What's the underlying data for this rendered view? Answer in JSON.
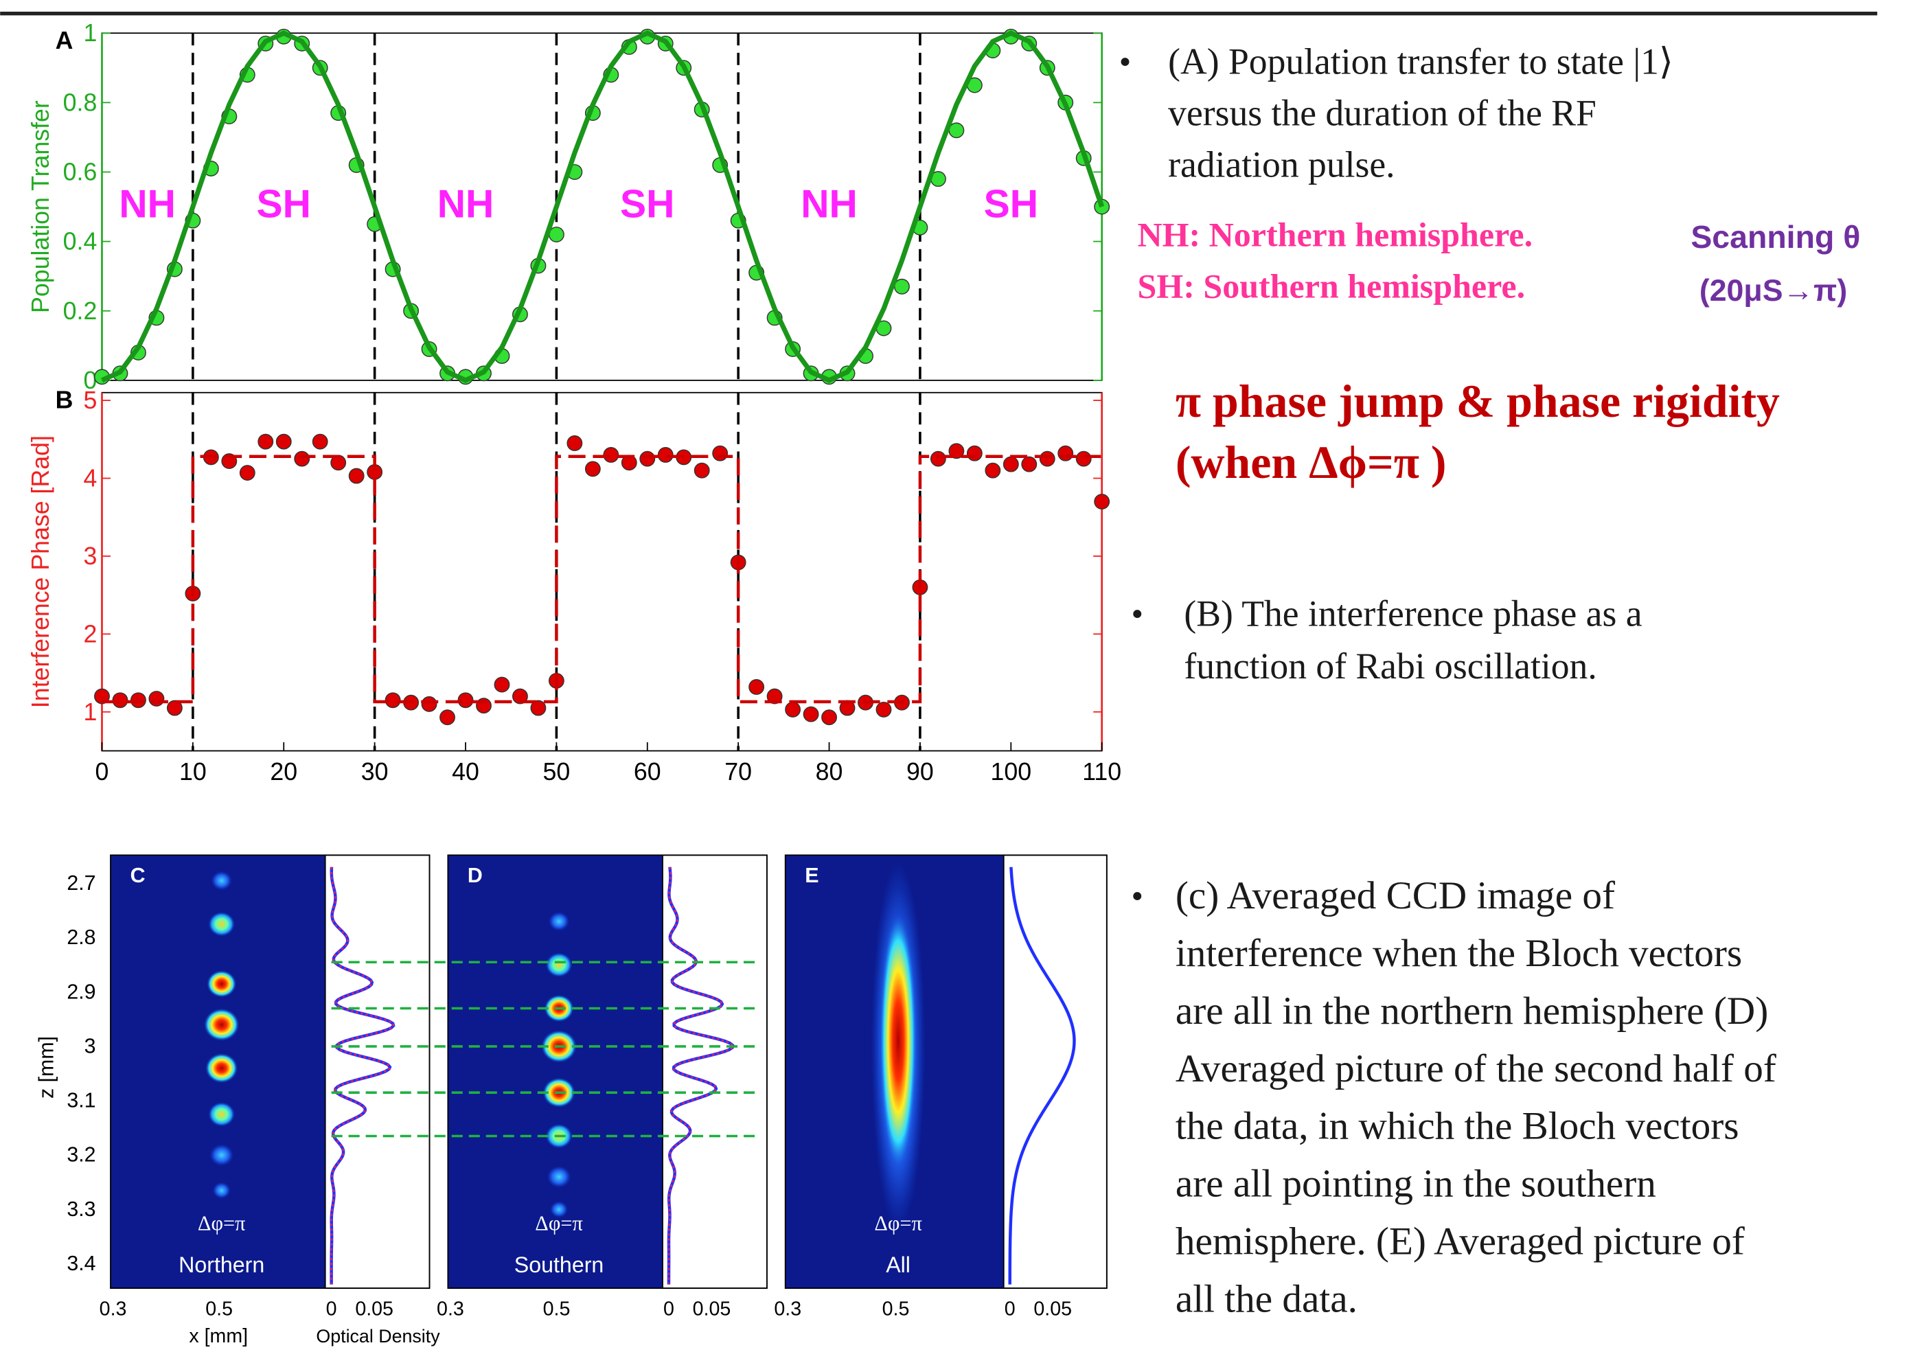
{
  "chart_data": [
    {
      "type": "scatter",
      "panel": "A",
      "ylabel": "Population Transfer",
      "axis_color": "#22aa22",
      "xlim": [
        0,
        110
      ],
      "ylim": [
        0,
        1
      ],
      "yticks": [
        0,
        0.2,
        0.4,
        0.6,
        0.8,
        1
      ],
      "dividers": [
        10,
        30,
        50,
        70,
        90
      ],
      "region_labels": [
        "NH",
        "SH",
        "NH",
        "SH",
        "NH",
        "SH"
      ],
      "region_color": "#ff22ff",
      "x": [
        0,
        2,
        4,
        6,
        8,
        10,
        12,
        14,
        16,
        18,
        20,
        22,
        24,
        26,
        28,
        30,
        32,
        34,
        36,
        38,
        40,
        42,
        44,
        46,
        48,
        50,
        52,
        54,
        56,
        58,
        60,
        62,
        64,
        66,
        68,
        70,
        72,
        74,
        76,
        78,
        80,
        82,
        84,
        86,
        88,
        90,
        92,
        94,
        96,
        98,
        100,
        102,
        104,
        106,
        108,
        110
      ],
      "series": [
        {
          "type": "scatter",
          "color": "#33e033",
          "values": [
            0.01,
            0.02,
            0.08,
            0.18,
            0.32,
            0.46,
            0.61,
            0.76,
            0.88,
            0.97,
            0.99,
            0.97,
            0.9,
            0.77,
            0.62,
            0.45,
            0.32,
            0.2,
            0.09,
            0.02,
            0.01,
            0.02,
            0.07,
            0.19,
            0.33,
            0.42,
            0.6,
            0.77,
            0.88,
            0.96,
            0.99,
            0.97,
            0.9,
            0.78,
            0.62,
            0.46,
            0.31,
            0.18,
            0.09,
            0.02,
            0.01,
            0.02,
            0.07,
            0.15,
            0.27,
            0.44,
            0.58,
            0.72,
            0.85,
            0.95,
            0.99,
            0.97,
            0.9,
            0.8,
            0.64,
            0.5
          ]
        },
        {
          "type": "line",
          "color": "#1a961a",
          "values": [
            0,
            0.024,
            0.095,
            0.206,
            0.345,
            0.5,
            0.655,
            0.794,
            0.905,
            0.976,
            1,
            0.976,
            0.905,
            0.794,
            0.655,
            0.5,
            0.345,
            0.206,
            0.095,
            0.024,
            0,
            0.024,
            0.095,
            0.206,
            0.345,
            0.5,
            0.655,
            0.794,
            0.905,
            0.976,
            1,
            0.976,
            0.905,
            0.794,
            0.655,
            0.5,
            0.345,
            0.206,
            0.095,
            0.024,
            0,
            0.024,
            0.095,
            0.206,
            0.345,
            0.5,
            0.655,
            0.794,
            0.905,
            0.976,
            1,
            0.976,
            0.905,
            0.794,
            0.655,
            0.5
          ]
        }
      ]
    },
    {
      "type": "scatter",
      "panel": "B",
      "ylabel": "Interference Phase [Rad]",
      "axis_color": "#ee2222",
      "xlim": [
        0,
        110
      ],
      "ylim": [
        0.5,
        5.1
      ],
      "yticks": [
        1,
        2,
        3,
        4,
        5
      ],
      "xticks": [
        0,
        10,
        20,
        30,
        40,
        50,
        60,
        70,
        80,
        90,
        100,
        110
      ],
      "dividers": [
        10,
        30,
        50,
        70,
        90
      ],
      "x": [
        0,
        2,
        4,
        6,
        8,
        10,
        12,
        14,
        16,
        18,
        20,
        22,
        24,
        26,
        28,
        30,
        32,
        34,
        36,
        38,
        40,
        42,
        44,
        46,
        48,
        50,
        52,
        54,
        56,
        58,
        60,
        62,
        64,
        66,
        68,
        70,
        72,
        74,
        76,
        78,
        80,
        82,
        84,
        86,
        88,
        90,
        92,
        94,
        96,
        98,
        100,
        102,
        104,
        106,
        108,
        110
      ],
      "series": [
        {
          "type": "scatter",
          "color": "#dd0000",
          "values": [
            1.2,
            1.15,
            1.15,
            1.17,
            1.05,
            2.52,
            4.27,
            4.22,
            4.07,
            4.47,
            4.47,
            4.25,
            4.47,
            4.2,
            4.03,
            4.08,
            1.15,
            1.12,
            1.1,
            0.93,
            1.15,
            1.08,
            1.35,
            1.2,
            1.05,
            1.4,
            4.45,
            4.12,
            4.3,
            4.2,
            4.25,
            4.3,
            4.27,
            4.1,
            4.32,
            2.92,
            1.32,
            1.2,
            1.03,
            0.97,
            0.93,
            1.05,
            1.12,
            1.03,
            1.12,
            2.6,
            4.25,
            4.35,
            4.32,
            4.1,
            4.18,
            4.18,
            4.25,
            4.32,
            4.25,
            3.7
          ]
        },
        {
          "type": "line",
          "dashed": true,
          "color": "#cc0000",
          "x": [
            0,
            10,
            10,
            30,
            30,
            50,
            50,
            70,
            70,
            90,
            90,
            110
          ],
          "values": [
            1.13,
            1.13,
            4.28,
            4.28,
            1.13,
            1.13,
            4.28,
            4.28,
            1.13,
            1.13,
            4.28,
            4.28
          ]
        }
      ]
    }
  ],
  "ccd_axes": {
    "zlabel": "z [mm]",
    "zticks": [
      2.7,
      2.8,
      2.9,
      3,
      3.1,
      3.2,
      3.3,
      3.4
    ],
    "xlabel": "x [mm]",
    "xticks": [
      0.3,
      0.5
    ],
    "odlabel": "Optical Density",
    "odticks": [
      0,
      0.05
    ]
  },
  "panels": [
    {
      "letter": "C",
      "note": "Δφ=π",
      "label": "Northern"
    },
    {
      "letter": "D",
      "note": "Δφ=π",
      "label": "Southern"
    },
    {
      "letter": "E",
      "note": "Δφ=π",
      "label": "All"
    }
  ],
  "text": {
    "bullet": "•",
    "a_lines": [
      "(A) Population transfer to state |1⟩",
      "versus the duration of the RF",
      "radiation pulse."
    ],
    "nh": "NH: Northern hemisphere.",
    "sh": "SH: Southern hemisphere.",
    "scan": "Scanning θ",
    "scan_range": "(20μS→π)",
    "jump": [
      "π phase jump & phase rigidity",
      "(when Δϕ=π  )"
    ],
    "b_lines": [
      "(B) The interference phase as a",
      "function of Rabi oscillation."
    ],
    "c_lines": [
      "(c) Averaged CCD image of",
      "interference when the Bloch vectors",
      "are all in the northern hemisphere (D)",
      "Averaged picture of the second half of",
      "the data, in which the Bloch vectors",
      "are all pointing in the southern",
      "hemisphere. (E) Averaged picture of",
      "all the data."
    ]
  }
}
